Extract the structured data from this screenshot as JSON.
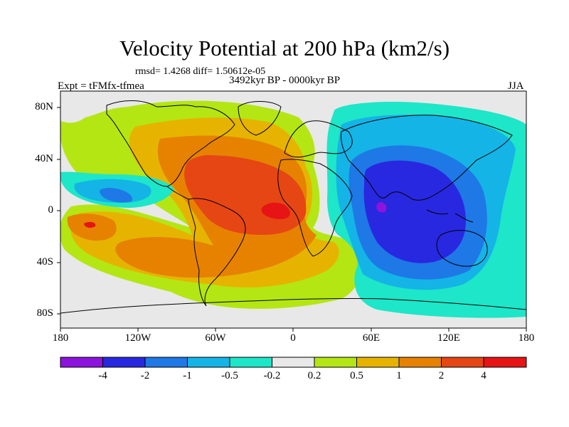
{
  "title": "Velocity Potential at 200 hPa (km2/s)",
  "stats_line": "rmsd= 1.4268 diff= 1.50612e-05",
  "period": "3492kyr BP - 0000kyr BP",
  "left_label": "Expt = tFMfx-tfmea",
  "right_label": "JJA",
  "lat_ticks": [
    "80N",
    "40N",
    "0",
    "40S",
    "80S"
  ],
  "lon_ticks": [
    "180",
    "120W",
    "60W",
    "0",
    "60E",
    "120E",
    "180"
  ],
  "colorbar": {
    "labels": [
      "-4",
      "-2",
      "-1",
      "-0.5",
      "-0.2",
      "0.2",
      "0.5",
      "1",
      "2",
      "4"
    ],
    "colors": [
      "#8c14dc",
      "#2828e0",
      "#1e78e6",
      "#14b4e6",
      "#1ee6c8",
      "#e8e8e8",
      "#b4e614",
      "#e6b400",
      "#e68200",
      "#e64614",
      "#e61414"
    ]
  },
  "map_colors": {
    "neutral": "#e8e8e8",
    "pos_02": "#b4e614",
    "pos_05": "#e6b400",
    "pos_1": "#e68200",
    "pos_2": "#e64614",
    "pos_4": "#e61414",
    "neg_02": "#1ee6c8",
    "neg_05": "#14b4e6",
    "neg_1": "#1e78e6",
    "neg_2": "#2828e0",
    "neg_4": "#8c14dc",
    "coast": "#000000"
  }
}
